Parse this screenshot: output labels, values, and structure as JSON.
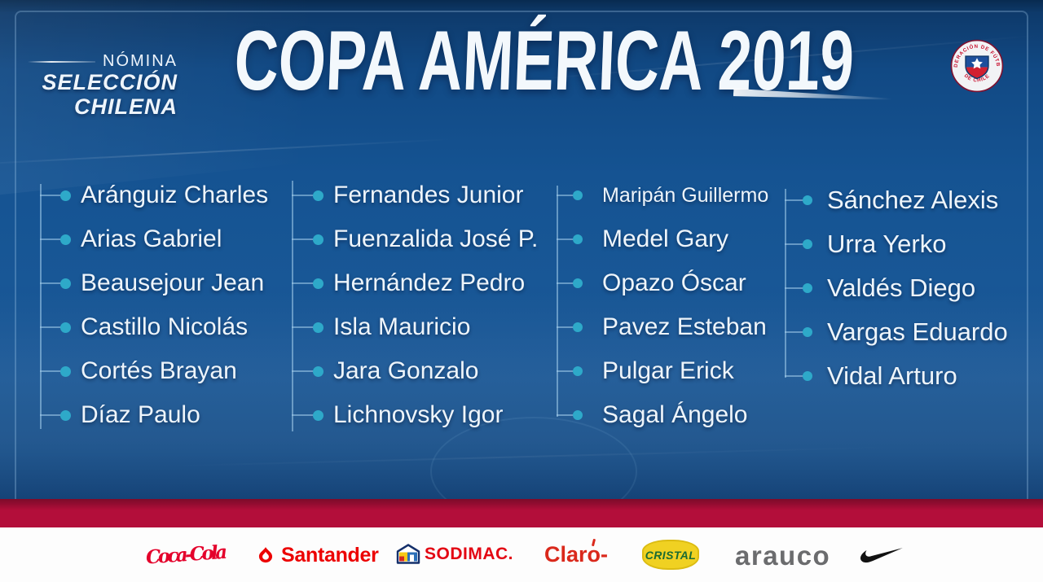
{
  "poster": {
    "brand": {
      "kicker": "NÓMINA",
      "title_line1": "SELECCIÓN",
      "title_line2": "CHILENA"
    },
    "title": "COPA AMÉRICA 2019",
    "crest": {
      "top_text": "FEDERACIÓN DE FÚTBOL",
      "bottom_text": "DE CHILE"
    }
  },
  "roster": {
    "columns": [
      {
        "players": [
          {
            "name": "Aránguiz Charles"
          },
          {
            "name": "Arias Gabriel"
          },
          {
            "name": "Beausejour Jean"
          },
          {
            "name": "Castillo Nicolás"
          },
          {
            "name": "Cortés Brayan"
          },
          {
            "name": "Díaz Paulo"
          }
        ]
      },
      {
        "players": [
          {
            "name": "Fernandes Junior"
          },
          {
            "name": "Fuenzalida José P."
          },
          {
            "name": "Hernández Pedro"
          },
          {
            "name": "Isla Mauricio"
          },
          {
            "name": "Jara Gonzalo"
          },
          {
            "name": "Lichnovsky Igor"
          }
        ]
      },
      {
        "players": [
          {
            "name": "Maripán Guillermo",
            "small": true
          },
          {
            "name": "Medel Gary"
          },
          {
            "name": "Opazo Óscar"
          },
          {
            "name": "Pavez Esteban"
          },
          {
            "name": "Pulgar Erick"
          },
          {
            "name": "Sagal Ángelo"
          }
        ]
      },
      {
        "players": [
          {
            "name": "Sánchez Alexis"
          },
          {
            "name": "Urra Yerko"
          },
          {
            "name": "Valdés Diego"
          },
          {
            "name": "Vargas Eduardo"
          },
          {
            "name": "Vidal Arturo"
          }
        ]
      }
    ]
  },
  "sponsors": [
    {
      "name": "Coca-Cola"
    },
    {
      "name": "Santander"
    },
    {
      "name": "SODIMAC."
    },
    {
      "name": "Claro-"
    },
    {
      "name": "CRISTAL"
    },
    {
      "name": "arauco"
    },
    {
      "name": "Nike"
    }
  ],
  "colors": {
    "dot-teal": "#2ea9c9",
    "text-white": "#eef5fb",
    "stripe-red": "#b30e3a",
    "coca-red": "#e4002b",
    "santander-red": "#ec0000",
    "sodimac-red": "#e30613",
    "claro-red": "#da291c",
    "cristal-yellow": "#f0d122",
    "cristal-green": "#1a6b33",
    "arauco-gray": "#6b6c6e",
    "nike-black": "#121212",
    "crest-red": "#c8102e"
  }
}
